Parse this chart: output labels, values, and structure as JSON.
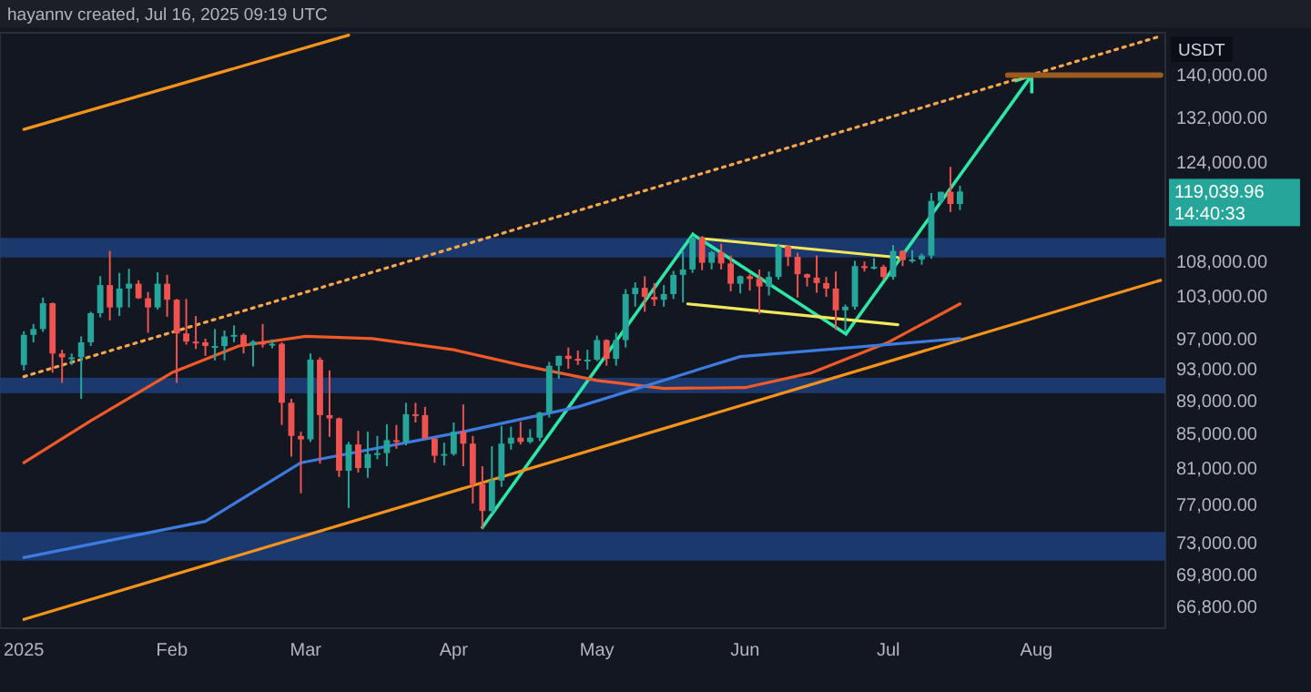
{
  "chart_data": {
    "type": "candlestick",
    "log": "y",
    "xlim": [
      "2024-12-27",
      "2025-08-28"
    ],
    "ylim": [
      64800,
      148500
    ],
    "xticks": [
      {
        "value": "2025-01-01",
        "label": "2025"
      },
      {
        "value": "2025-02-01",
        "label": "Feb"
      },
      {
        "value": "2025-03-01",
        "label": "Mar"
      },
      {
        "value": "2025-04-01",
        "label": "Apr"
      },
      {
        "value": "2025-05-01",
        "label": "May"
      },
      {
        "value": "2025-06-01",
        "label": "Jun"
      },
      {
        "value": "2025-07-01",
        "label": "Jul"
      },
      {
        "value": "2025-08-01",
        "label": "Aug"
      }
    ],
    "yticks": [
      {
        "value": 66800,
        "label": "66,800.00"
      },
      {
        "value": 69800,
        "label": "69,800.00"
      },
      {
        "value": 73000,
        "label": "73,000.00"
      },
      {
        "value": 77000,
        "label": "77,000.00"
      },
      {
        "value": 81000,
        "label": "81,000.00"
      },
      {
        "value": 85000,
        "label": "85,000.00"
      },
      {
        "value": 89000,
        "label": "89,000.00"
      },
      {
        "value": 93000,
        "label": "93,000.00"
      },
      {
        "value": 97000,
        "label": "97,000.00"
      },
      {
        "value": 103000,
        "label": "103,000.00"
      },
      {
        "value": 108000,
        "label": "108,000.00"
      },
      {
        "value": 124000,
        "label": "124,000.00"
      },
      {
        "value": 132000,
        "label": "132,000.00"
      },
      {
        "value": 140000,
        "label": "140,000.00"
      }
    ],
    "x": [
      "2025-01-01",
      "2025-01-03",
      "2025-01-05",
      "2025-01-07",
      "2025-01-09",
      "2025-01-11",
      "2025-01-13",
      "2025-01-15",
      "2025-01-17",
      "2025-01-19",
      "2025-01-21",
      "2025-01-23",
      "2025-01-25",
      "2025-01-27",
      "2025-01-29",
      "2025-01-31",
      "2025-02-02",
      "2025-02-04",
      "2025-02-06",
      "2025-02-08",
      "2025-02-10",
      "2025-02-12",
      "2025-02-14",
      "2025-02-16",
      "2025-02-18",
      "2025-02-20",
      "2025-02-22",
      "2025-02-24",
      "2025-02-26",
      "2025-02-28",
      "2025-03-02",
      "2025-03-04",
      "2025-03-06",
      "2025-03-08",
      "2025-03-10",
      "2025-03-12",
      "2025-03-14",
      "2025-03-16",
      "2025-03-18",
      "2025-03-20",
      "2025-03-22",
      "2025-03-24",
      "2025-03-26",
      "2025-03-28",
      "2025-03-30",
      "2025-04-01",
      "2025-04-03",
      "2025-04-05",
      "2025-04-07",
      "2025-04-09",
      "2025-04-11",
      "2025-04-13",
      "2025-04-15",
      "2025-04-17",
      "2025-04-19",
      "2025-04-21",
      "2025-04-23",
      "2025-04-25",
      "2025-04-27",
      "2025-04-29",
      "2025-05-01",
      "2025-05-03",
      "2025-05-05",
      "2025-05-07",
      "2025-05-09",
      "2025-05-11",
      "2025-05-13",
      "2025-05-15",
      "2025-05-17",
      "2025-05-19",
      "2025-05-21",
      "2025-05-23",
      "2025-05-25",
      "2025-05-27",
      "2025-05-29",
      "2025-05-31",
      "2025-06-02",
      "2025-06-04",
      "2025-06-06",
      "2025-06-08",
      "2025-06-10",
      "2025-06-12",
      "2025-06-14",
      "2025-06-16",
      "2025-06-18",
      "2025-06-20",
      "2025-06-22",
      "2025-06-24",
      "2025-06-26",
      "2025-06-28",
      "2025-06-30",
      "2025-07-02",
      "2025-07-04",
      "2025-07-06",
      "2025-07-08",
      "2025-07-10",
      "2025-07-12",
      "2025-07-14",
      "2025-07-16"
    ],
    "ohlc": [
      [
        93500,
        98000,
        92800,
        97500
      ],
      [
        97500,
        99000,
        96500,
        98300
      ],
      [
        98300,
        102700,
        97900,
        101900
      ],
      [
        101900,
        102000,
        92500,
        95000
      ],
      [
        95000,
        95500,
        91200,
        94500
      ],
      [
        94500,
        95000,
        93500,
        94500
      ],
      [
        94500,
        97300,
        89200,
        96500
      ],
      [
        96500,
        100700,
        96000,
        100500
      ],
      [
        100500,
        105800,
        99900,
        104500
      ],
      [
        104500,
        109600,
        99500,
        101300
      ],
      [
        101300,
        106300,
        100100,
        104000
      ],
      [
        104000,
        106900,
        101300,
        104700
      ],
      [
        104700,
        105200,
        102500,
        102600
      ],
      [
        102600,
        103500,
        97800,
        101300
      ],
      [
        101300,
        106400,
        101000,
        104700
      ],
      [
        104700,
        106000,
        100000,
        102400
      ],
      [
        102400,
        102500,
        91200,
        97700
      ],
      [
        97700,
        102500,
        96200,
        96600
      ],
      [
        96600,
        100100,
        95600,
        96500
      ],
      [
        96500,
        97000,
        94700,
        96000
      ],
      [
        96000,
        98300,
        94100,
        96000
      ],
      [
        96000,
        98100,
        94100,
        97300
      ],
      [
        97300,
        98800,
        96500,
        97500
      ],
      [
        97500,
        97700,
        95000,
        96100
      ],
      [
        96100,
        96800,
        93300,
        96600
      ],
      [
        96600,
        99000,
        95800,
        96200
      ],
      [
        96200,
        96900,
        95700,
        96300
      ],
      [
        96300,
        96500,
        86000,
        88700
      ],
      [
        88700,
        89200,
        82300,
        84700
      ],
      [
        84700,
        85200,
        78200,
        84300
      ],
      [
        84300,
        95000,
        84000,
        94200
      ],
      [
        94200,
        94500,
        81500,
        87200
      ],
      [
        87200,
        92800,
        84600,
        86800
      ],
      [
        86800,
        86900,
        80000,
        80700
      ],
      [
        80700,
        84000,
        76600,
        83700
      ],
      [
        83700,
        85300,
        80500,
        81000
      ],
      [
        81000,
        85200,
        79900,
        82600
      ],
      [
        82600,
        84700,
        82000,
        82700
      ],
      [
        82700,
        86100,
        81200,
        84200
      ],
      [
        84200,
        86000,
        83200,
        84000
      ],
      [
        84000,
        88700,
        83600,
        87300
      ],
      [
        87300,
        88700,
        86300,
        87200
      ],
      [
        87200,
        88200,
        84400,
        84400
      ],
      [
        84400,
        84500,
        81600,
        82400
      ],
      [
        82400,
        83900,
        81300,
        82600
      ],
      [
        82600,
        86300,
        82400,
        85200
      ],
      [
        85200,
        88500,
        81200,
        83800
      ],
      [
        83800,
        84700,
        77100,
        79200
      ],
      [
        79200,
        81200,
        74500,
        76300
      ],
      [
        76300,
        83500,
        76000,
        79600
      ],
      [
        79600,
        85900,
        78900,
        83800
      ],
      [
        83800,
        85800,
        83100,
        84500
      ],
      [
        84500,
        86400,
        83700,
        84000
      ],
      [
        84000,
        85500,
        83800,
        84500
      ],
      [
        84500,
        87600,
        84100,
        87500
      ],
      [
        87500,
        93900,
        86900,
        93400
      ],
      [
        93400,
        94700,
        91700,
        94700
      ],
      [
        94700,
        95800,
        93000,
        94300
      ],
      [
        94300,
        95400,
        93500,
        94200
      ],
      [
        94200,
        95500,
        92900,
        94200
      ],
      [
        94200,
        97400,
        94000,
        96800
      ],
      [
        96800,
        96900,
        93400,
        94300
      ],
      [
        94300,
        97800,
        93400,
        96800
      ],
      [
        96800,
        103900,
        95800,
        103200
      ],
      [
        103200,
        104900,
        101400,
        104100
      ],
      [
        104100,
        105800,
        100700,
        102800
      ],
      [
        102800,
        104800,
        101500,
        102400
      ],
      [
        102400,
        104500,
        101400,
        103200
      ],
      [
        103200,
        106600,
        102500,
        106000
      ],
      [
        106000,
        109500,
        102000,
        106800
      ],
      [
        106800,
        111900,
        106300,
        111600
      ],
      [
        111600,
        111900,
        106700,
        107800
      ],
      [
        107800,
        109600,
        106800,
        109400
      ],
      [
        109400,
        110700,
        106800,
        107700
      ],
      [
        107700,
        108900,
        103600,
        104700
      ],
      [
        104700,
        105900,
        103300,
        105800
      ],
      [
        105800,
        106100,
        103700,
        105400
      ],
      [
        105400,
        106800,
        100400,
        104300
      ],
      [
        104300,
        106500,
        103000,
        105700
      ],
      [
        105700,
        110700,
        105300,
        110300
      ],
      [
        110300,
        110400,
        107300,
        108700
      ],
      [
        108700,
        109300,
        102700,
        106100
      ],
      [
        106100,
        106200,
        104300,
        105600
      ],
      [
        105600,
        108900,
        103400,
        104800
      ],
      [
        104800,
        105700,
        102800,
        104000
      ],
      [
        104000,
        106500,
        98200,
        100900
      ],
      [
        100900,
        101700,
        98000,
        101400
      ],
      [
        101400,
        108100,
        101000,
        107300
      ],
      [
        107300,
        108000,
        106500,
        107000
      ],
      [
        107000,
        108500,
        106800,
        107200
      ],
      [
        107200,
        107500,
        105300,
        105700
      ],
      [
        105700,
        110500,
        105300,
        109600
      ],
      [
        109600,
        109700,
        107300,
        108200
      ],
      [
        108200,
        109700,
        107800,
        108300
      ],
      [
        108300,
        109200,
        107500,
        108900
      ],
      [
        108900,
        118800,
        108400,
        117500
      ],
      [
        117500,
        119000,
        117000,
        119000
      ],
      [
        119000,
        123200,
        115700,
        117000
      ],
      [
        117000,
        120000,
        116000,
        119039.96
      ]
    ],
    "series": [
      {
        "type": "line",
        "color": "#f7931a",
        "x": [
          "2025-01-01",
          "2025-08-27"
        ],
        "values": [
          65600,
          105200
        ]
      },
      {
        "type": "line",
        "color": "#f7931a",
        "x": [
          "2025-01-01",
          "2025-03-10"
        ],
        "values": [
          129800,
          148000
        ]
      },
      {
        "type": "line",
        "color": "#f7a74a",
        "line_style": "dotted",
        "x": [
          "2025-01-01",
          "2025-08-27"
        ],
        "values": [
          92000,
          147800
        ]
      },
      {
        "type": "line",
        "color": "#f05a28",
        "x": [
          "2025-01-01",
          "2025-01-15",
          "2025-02-01",
          "2025-02-15",
          "2025-03-01",
          "2025-03-15",
          "2025-04-01",
          "2025-04-15",
          "2025-05-01",
          "2025-05-15",
          "2025-06-01",
          "2025-06-15",
          "2025-07-01",
          "2025-07-16"
        ],
        "values": [
          81600,
          86500,
          92500,
          96000,
          97300,
          97000,
          95500,
          93500,
          91500,
          90500,
          90600,
          92500,
          96500,
          101800
        ]
      },
      {
        "type": "line",
        "color": "#3d7be0",
        "x": [
          "2025-01-01",
          "2025-02-08",
          "2025-02-28",
          "2025-04-03",
          "2025-04-27",
          "2025-05-31",
          "2025-07-16"
        ],
        "values": [
          71500,
          75200,
          81600,
          85200,
          88200,
          94600,
          97000
        ]
      },
      {
        "type": "line",
        "color": "#f2e85c",
        "x": [
          "2025-05-23",
          "2025-07-03"
        ],
        "values": [
          111500,
          108600
        ]
      },
      {
        "type": "line",
        "color": "#f2e85c",
        "x": [
          "2025-05-20",
          "2025-07-03"
        ],
        "values": [
          101800,
          98900
        ]
      },
      {
        "type": "line",
        "color": "#9c5a1e",
        "x": [
          "2025-07-26",
          "2025-08-27"
        ],
        "values": [
          140000,
          140000
        ]
      }
    ],
    "bands": [
      {
        "axis": "y",
        "from": 108600,
        "to": 111600,
        "color": "#1e3f7a"
      },
      {
        "axis": "y",
        "from": 89900,
        "to": 91850,
        "color": "#1e3f7a"
      },
      {
        "axis": "y",
        "from": 71200,
        "to": 74100,
        "color": "#1e3f7a"
      }
    ],
    "annotations": [
      "hayannv created, Jul 16, 2025 09:19 UTC",
      "USDT",
      "119,039.96",
      "14:40:33"
    ]
  }
}
